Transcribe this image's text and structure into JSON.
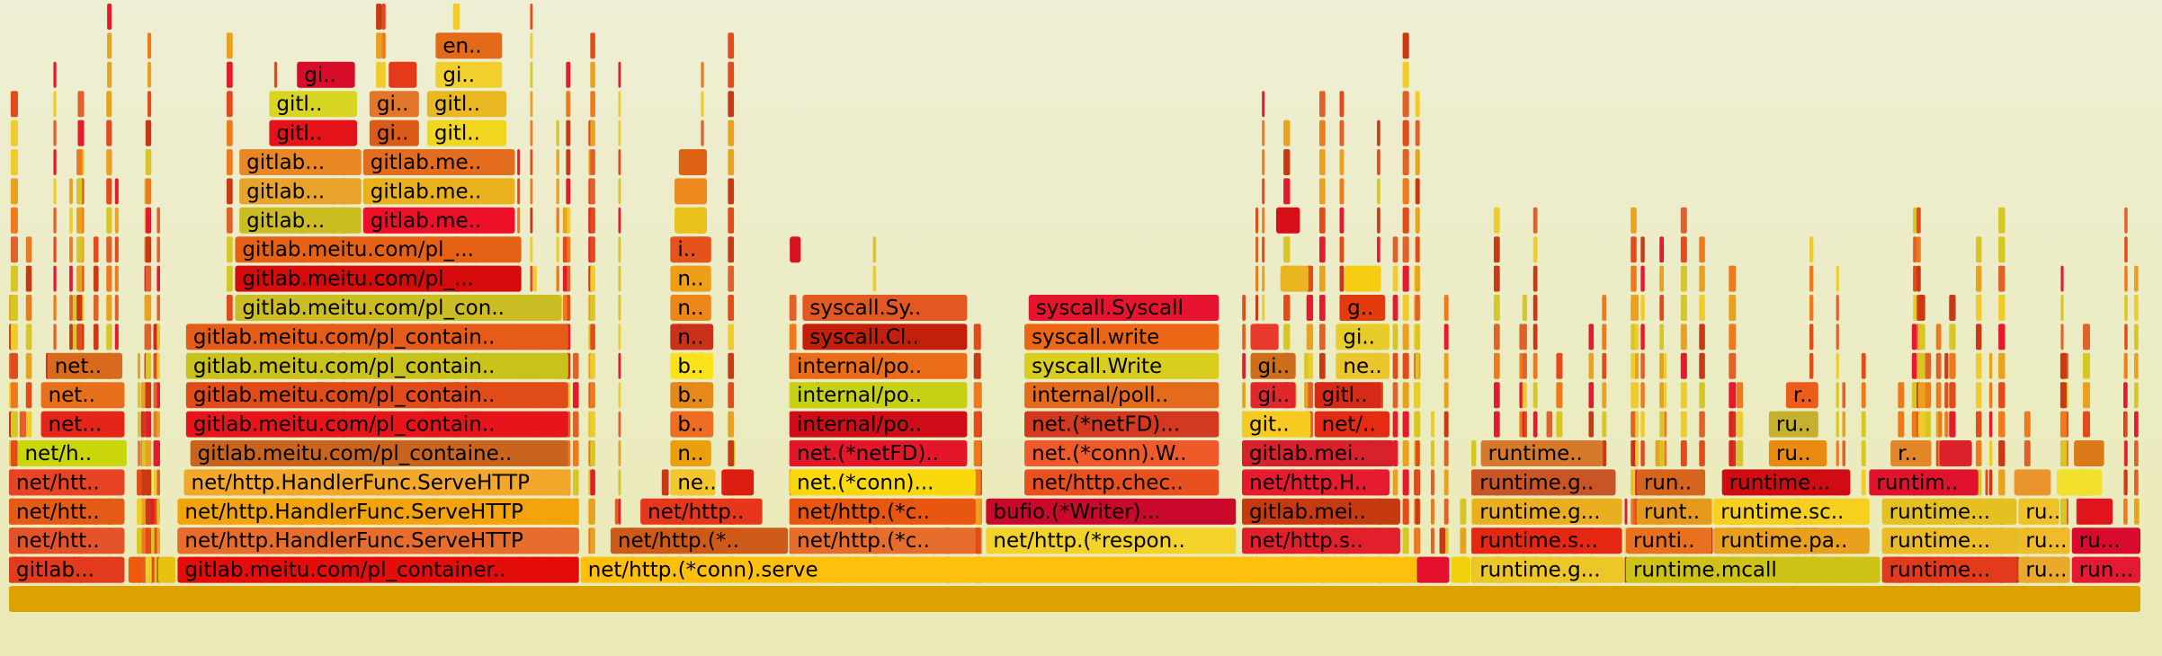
{
  "chart_data": {
    "type": "flamegraph",
    "title": "",
    "frames": [
      {
        "label": "",
        "depth": 0,
        "start": 0.0,
        "width": 1.0,
        "color": "#dca200"
      },
      {
        "label": "gitlab...",
        "depth": 1,
        "start": 0.0,
        "width": 0.055,
        "color": "#e13a1c"
      },
      {
        "label": "",
        "depth": 1,
        "start": 0.056,
        "width": 0.007,
        "color": "#f05a0c"
      },
      {
        "label": "",
        "depth": 1,
        "start": 0.07,
        "width": 0.009,
        "color": "#e7c310"
      },
      {
        "label": "gitlab.meitu.com/pl_container..",
        "depth": 1,
        "start": 0.079,
        "width": 0.189,
        "color": "#e50c0c"
      },
      {
        "label": "net/http.(*conn).serve",
        "depth": 1,
        "start": 0.268,
        "width": 0.392,
        "color": "#fec00d"
      },
      {
        "label": "",
        "depth": 1,
        "start": 0.66,
        "width": 0.016,
        "color": "#e4112e"
      },
      {
        "label": "",
        "depth": 1,
        "start": 0.676,
        "width": 0.01,
        "color": "#f4d00c"
      },
      {
        "label": "runtime.g...",
        "depth": 1,
        "start": 0.686,
        "width": 0.072,
        "color": "#edc628"
      },
      {
        "label": "runtime.mcall",
        "depth": 1,
        "start": 0.758,
        "width": 0.12,
        "color": "#cec216"
      },
      {
        "label": "runtime...",
        "depth": 1,
        "start": 0.878,
        "width": 0.064,
        "color": "#e13a1c"
      },
      {
        "label": "ru...",
        "depth": 1,
        "start": 0.942,
        "width": 0.025,
        "color": "#e9a92c"
      },
      {
        "label": "run...",
        "depth": 1,
        "start": 0.967,
        "width": 0.033,
        "color": "#e31a32"
      },
      {
        "label": "net/htt..",
        "depth": 2,
        "start": 0.0,
        "width": 0.055,
        "color": "#e4522a"
      },
      {
        "label": "gitlab.meitu.com/pl_container..",
        "depth": 2,
        "start": 0.079,
        "width": 0.189,
        "color": "#e50c0c"
      },
      {
        "label": "net/http.HandlerFunc.ServeHTTP",
        "depth": 2,
        "start": 0.079,
        "width": 0.189,
        "color": "#e66d2c"
      },
      {
        "label": "net/http.(*..",
        "depth": 2,
        "start": 0.282,
        "width": 0.084,
        "color": "#cd5a18"
      },
      {
        "label": "net/http.(*c..",
        "depth": 2,
        "start": 0.366,
        "width": 0.088,
        "color": "#e66d2c"
      },
      {
        "label": "net/http.(*respon..",
        "depth": 2,
        "start": 0.458,
        "width": 0.118,
        "color": "#f3d22a"
      },
      {
        "label": "net/http.s..",
        "depth": 2,
        "start": 0.578,
        "width": 0.075,
        "color": "#e2202c"
      },
      {
        "label": "runtime.s...",
        "depth": 2,
        "start": 0.686,
        "width": 0.071,
        "color": "#e52713"
      },
      {
        "label": "runti..",
        "depth": 2,
        "start": 0.758,
        "width": 0.041,
        "color": "#e8701f"
      },
      {
        "label": "runtime.pa..",
        "depth": 2,
        "start": 0.799,
        "width": 0.074,
        "color": "#e8a01d"
      },
      {
        "label": "runtime...",
        "depth": 2,
        "start": 0.878,
        "width": 0.064,
        "color": "#ebbb26"
      },
      {
        "label": "ru...",
        "depth": 2,
        "start": 0.942,
        "width": 0.025,
        "color": "#efbb29"
      },
      {
        "label": "ru...",
        "depth": 2,
        "start": 0.967,
        "width": 0.033,
        "color": "#d80a2e"
      },
      {
        "label": "net/htt..",
        "depth": 3,
        "start": 0.0,
        "width": 0.055,
        "color": "#e35b14"
      },
      {
        "label": "net/http.HandlerFunc.ServeHTTP",
        "depth": 3,
        "start": 0.079,
        "width": 0.189,
        "color": "#f3a40b"
      },
      {
        "label": "net/http..",
        "depth": 3,
        "start": 0.296,
        "width": 0.058,
        "color": "#e8361d"
      },
      {
        "label": "net/http.(*c..",
        "depth": 3,
        "start": 0.366,
        "width": 0.088,
        "color": "#e8560f"
      },
      {
        "label": "bufio.(*Writer)...",
        "depth": 3,
        "start": 0.458,
        "width": 0.118,
        "color": "#c9082c"
      },
      {
        "label": "gitlab.mei..",
        "depth": 3,
        "start": 0.578,
        "width": 0.075,
        "color": "#c63a12"
      },
      {
        "label": "runtime.g...",
        "depth": 3,
        "start": 0.686,
        "width": 0.071,
        "color": "#eaaf1e"
      },
      {
        "label": "runt..",
        "depth": 3,
        "start": 0.763,
        "width": 0.036,
        "color": "#e59a1c"
      },
      {
        "label": "runtime.sc..",
        "depth": 3,
        "start": 0.799,
        "width": 0.074,
        "color": "#f7cf1e"
      },
      {
        "label": "runtime...",
        "depth": 3,
        "start": 0.878,
        "width": 0.064,
        "color": "#e4c020"
      },
      {
        "label": "ru..",
        "depth": 3,
        "start": 0.942,
        "width": 0.02,
        "color": "#efc228"
      },
      {
        "label": "",
        "depth": 3,
        "start": 0.97,
        "width": 0.017,
        "color": "#e1141c"
      },
      {
        "label": "net/htt..",
        "depth": 4,
        "start": 0.0,
        "width": 0.055,
        "color": "#e94326"
      },
      {
        "label": "net/http.HandlerFunc.ServeHTTP",
        "depth": 4,
        "start": 0.082,
        "width": 0.182,
        "color": "#f3a72b"
      },
      {
        "label": "ne..",
        "depth": 4,
        "start": 0.31,
        "width": 0.022,
        "color": "#f2c72c"
      },
      {
        "label": "",
        "depth": 4,
        "start": 0.334,
        "width": 0.016,
        "color": "#db1e10"
      },
      {
        "label": "net.(*conn)...",
        "depth": 4,
        "start": 0.366,
        "width": 0.088,
        "color": "#fbd80c"
      },
      {
        "label": "net/http.chec..",
        "depth": 4,
        "start": 0.476,
        "width": 0.092,
        "color": "#e9501f"
      },
      {
        "label": "net/http.H..",
        "depth": 4,
        "start": 0.578,
        "width": 0.07,
        "color": "#e61b2f"
      },
      {
        "label": "runtime.g..",
        "depth": 4,
        "start": 0.686,
        "width": 0.068,
        "color": "#c85526"
      },
      {
        "label": "run..",
        "depth": 4,
        "start": 0.763,
        "width": 0.033,
        "color": "#d6641c"
      },
      {
        "label": "runtime...",
        "depth": 4,
        "start": 0.803,
        "width": 0.061,
        "color": "#d00c12"
      },
      {
        "label": "runtim..",
        "depth": 4,
        "start": 0.872,
        "width": 0.052,
        "color": "#e1122c"
      },
      {
        "label": "",
        "depth": 4,
        "start": 0.94,
        "width": 0.018,
        "color": "#e9952b"
      },
      {
        "label": "",
        "depth": 4,
        "start": 0.96,
        "width": 0.022,
        "color": "#f1e02c"
      },
      {
        "label": "net/h..",
        "depth": 5,
        "start": 0.004,
        "width": 0.052,
        "color": "#cbd60a"
      },
      {
        "label": "gitlab.meitu.com/pl_containe..",
        "depth": 5,
        "start": 0.085,
        "width": 0.178,
        "color": "#c9641e"
      },
      {
        "label": "n..",
        "depth": 5,
        "start": 0.31,
        "width": 0.02,
        "color": "#eaa00d"
      },
      {
        "label": "net.(*netFD)..",
        "depth": 5,
        "start": 0.366,
        "width": 0.084,
        "color": "#e3162a"
      },
      {
        "label": "net.(*conn).W..",
        "depth": 5,
        "start": 0.476,
        "width": 0.092,
        "color": "#ef5a2a"
      },
      {
        "label": "gitlab.mei..",
        "depth": 5,
        "start": 0.578,
        "width": 0.072,
        "color": "#d8212c"
      },
      {
        "label": "runtime..",
        "depth": 5,
        "start": 0.69,
        "width": 0.058,
        "color": "#d7792b"
      },
      {
        "label": "ru..",
        "depth": 5,
        "start": 0.825,
        "width": 0.028,
        "color": "#e88a10"
      },
      {
        "label": "r..",
        "depth": 5,
        "start": 0.882,
        "width": 0.02,
        "color": "#e1872a"
      },
      {
        "label": "",
        "depth": 5,
        "start": 0.905,
        "width": 0.016,
        "color": "#dd212c"
      },
      {
        "label": "",
        "depth": 5,
        "start": 0.968,
        "width": 0.015,
        "color": "#da7a18"
      },
      {
        "label": "net...",
        "depth": 6,
        "start": 0.015,
        "width": 0.04,
        "color": "#e52517"
      },
      {
        "label": "gitlab.meitu.com/pl_contain..",
        "depth": 6,
        "start": 0.083,
        "width": 0.18,
        "color": "#e8141c"
      },
      {
        "label": "b..",
        "depth": 6,
        "start": 0.31,
        "width": 0.021,
        "color": "#ef6d23"
      },
      {
        "label": "internal/po..",
        "depth": 6,
        "start": 0.366,
        "width": 0.084,
        "color": "#cf0c18"
      },
      {
        "label": "net.(*netFD)...",
        "depth": 6,
        "start": 0.476,
        "width": 0.092,
        "color": "#d3391e"
      },
      {
        "label": "git..",
        "depth": 6,
        "start": 0.578,
        "width": 0.033,
        "color": "#f7ca22"
      },
      {
        "label": "net/..",
        "depth": 6,
        "start": 0.612,
        "width": 0.036,
        "color": "#e62b14"
      },
      {
        "label": "ru..",
        "depth": 6,
        "start": 0.825,
        "width": 0.024,
        "color": "#c6b12e"
      },
      {
        "label": "net..",
        "depth": 7,
        "start": 0.015,
        "width": 0.04,
        "color": "#e8701c"
      },
      {
        "label": "gitlab.meitu.com/pl_contain..",
        "depth": 7,
        "start": 0.083,
        "width": 0.18,
        "color": "#e14b1a"
      },
      {
        "label": "b..",
        "depth": 7,
        "start": 0.31,
        "width": 0.021,
        "color": "#e58a1a"
      },
      {
        "label": "internal/po..",
        "depth": 7,
        "start": 0.366,
        "width": 0.084,
        "color": "#c7d114"
      },
      {
        "label": "internal/poll..",
        "depth": 7,
        "start": 0.476,
        "width": 0.092,
        "color": "#e56b1c"
      },
      {
        "label": "gi..",
        "depth": 7,
        "start": 0.582,
        "width": 0.022,
        "color": "#e2272c"
      },
      {
        "label": "gitl..",
        "depth": 7,
        "start": 0.612,
        "width": 0.032,
        "color": "#d72a16"
      },
      {
        "label": "r..",
        "depth": 7,
        "start": 0.833,
        "width": 0.016,
        "color": "#ee5c1a"
      },
      {
        "label": "net..",
        "depth": 8,
        "start": 0.018,
        "width": 0.036,
        "color": "#d76a1c"
      },
      {
        "label": "gitlab.meitu.com/pl_contain..",
        "depth": 8,
        "start": 0.083,
        "width": 0.18,
        "color": "#c8c21a"
      },
      {
        "label": "b..",
        "depth": 8,
        "start": 0.31,
        "width": 0.021,
        "color": "#fbe21a"
      },
      {
        "label": "internal/po..",
        "depth": 8,
        "start": 0.366,
        "width": 0.084,
        "color": "#eb6c18"
      },
      {
        "label": "syscall.Write",
        "depth": 8,
        "start": 0.476,
        "width": 0.092,
        "color": "#d9ce1e"
      },
      {
        "label": "gi..",
        "depth": 8,
        "start": 0.582,
        "width": 0.022,
        "color": "#cd6e1a"
      },
      {
        "label": "ne..",
        "depth": 8,
        "start": 0.622,
        "width": 0.026,
        "color": "#eac52c"
      },
      {
        "label": "gitlab.meitu.com/pl_contain..",
        "depth": 9,
        "start": 0.083,
        "width": 0.18,
        "color": "#e55c18"
      },
      {
        "label": "n..",
        "depth": 9,
        "start": 0.31,
        "width": 0.021,
        "color": "#c9311a"
      },
      {
        "label": "syscall.Cl..",
        "depth": 9,
        "start": 0.372,
        "width": 0.078,
        "color": "#c21f0c"
      },
      {
        "label": "syscall.write",
        "depth": 9,
        "start": 0.476,
        "width": 0.092,
        "color": "#ec6616"
      },
      {
        "label": "",
        "depth": 9,
        "start": 0.582,
        "width": 0.014,
        "color": "#e9392c"
      },
      {
        "label": "gi..",
        "depth": 9,
        "start": 0.622,
        "width": 0.026,
        "color": "#e8cc2a"
      },
      {
        "label": "gitlab.meitu.com/pl_con..",
        "depth": 10,
        "start": 0.106,
        "width": 0.154,
        "color": "#cbbe24"
      },
      {
        "label": "n..",
        "depth": 10,
        "start": 0.31,
        "width": 0.02,
        "color": "#ec8618"
      },
      {
        "label": "syscall.Sy..",
        "depth": 10,
        "start": 0.372,
        "width": 0.078,
        "color": "#e25822"
      },
      {
        "label": "syscall.Syscall",
        "depth": 10,
        "start": 0.478,
        "width": 0.09,
        "color": "#e71430"
      },
      {
        "label": "g..",
        "depth": 10,
        "start": 0.624,
        "width": 0.022,
        "color": "#e33a0e"
      },
      {
        "label": "gitlab.meitu.com/pl_...",
        "depth": 11,
        "start": 0.106,
        "width": 0.135,
        "color": "#d60b0b"
      },
      {
        "label": "n..",
        "depth": 11,
        "start": 0.31,
        "width": 0.02,
        "color": "#ef9e1a"
      },
      {
        "label": "",
        "depth": 11,
        "start": 0.596,
        "width": 0.014,
        "color": "#e9b622"
      },
      {
        "label": "",
        "depth": 11,
        "start": 0.626,
        "width": 0.018,
        "color": "#f6cc12"
      },
      {
        "label": "gitlab.meitu.com/pl_...",
        "depth": 12,
        "start": 0.106,
        "width": 0.135,
        "color": "#e56116"
      },
      {
        "label": "i..",
        "depth": 12,
        "start": 0.31,
        "width": 0.02,
        "color": "#e5521c"
      },
      {
        "label": "",
        "depth": 12,
        "start": 0.366,
        "width": 0.006,
        "color": "#d81220"
      },
      {
        "label": "gitlab...",
        "depth": 13,
        "start": 0.108,
        "width": 0.058,
        "color": "#ccbd22"
      },
      {
        "label": "gitlab.me..",
        "depth": 13,
        "start": 0.166,
        "width": 0.072,
        "color": "#ed1028"
      },
      {
        "label": "",
        "depth": 13,
        "start": 0.312,
        "width": 0.016,
        "color": "#e9c21a"
      },
      {
        "label": "",
        "depth": 13,
        "start": 0.594,
        "width": 0.012,
        "color": "#d70f18"
      },
      {
        "label": "gitlab...",
        "depth": 14,
        "start": 0.108,
        "width": 0.058,
        "color": "#e8a42a"
      },
      {
        "label": "gitlab.me..",
        "depth": 14,
        "start": 0.166,
        "width": 0.072,
        "color": "#e9b21c"
      },
      {
        "label": "",
        "depth": 14,
        "start": 0.312,
        "width": 0.016,
        "color": "#ee8a1e"
      },
      {
        "label": "gitlab...",
        "depth": 15,
        "start": 0.108,
        "width": 0.058,
        "color": "#e88724"
      },
      {
        "label": "gitlab.me..",
        "depth": 15,
        "start": 0.166,
        "width": 0.072,
        "color": "#e46c1e"
      },
      {
        "label": "",
        "depth": 15,
        "start": 0.314,
        "width": 0.014,
        "color": "#de6214"
      },
      {
        "label": "gitl..",
        "depth": 16,
        "start": 0.122,
        "width": 0.042,
        "color": "#e5121a"
      },
      {
        "label": "gi..",
        "depth": 16,
        "start": 0.169,
        "width": 0.024,
        "color": "#dc5a18"
      },
      {
        "label": "gitl..",
        "depth": 16,
        "start": 0.196,
        "width": 0.038,
        "color": "#f1d620"
      },
      {
        "label": "gitl..",
        "depth": 17,
        "start": 0.122,
        "width": 0.042,
        "color": "#d8d622"
      },
      {
        "label": "gi..",
        "depth": 17,
        "start": 0.169,
        "width": 0.024,
        "color": "#e4762a"
      },
      {
        "label": "gitl..",
        "depth": 17,
        "start": 0.196,
        "width": 0.038,
        "color": "#eab820"
      },
      {
        "label": "gi..",
        "depth": 18,
        "start": 0.135,
        "width": 0.028,
        "color": "#d90d2a"
      },
      {
        "label": "",
        "depth": 18,
        "start": 0.178,
        "width": 0.014,
        "color": "#e43a1a"
      },
      {
        "label": "gi..",
        "depth": 18,
        "start": 0.2,
        "width": 0.032,
        "color": "#f1cf2c"
      },
      {
        "label": "en..",
        "depth": 19,
        "start": 0.2,
        "width": 0.032,
        "color": "#e36a18"
      }
    ]
  },
  "slivers": {
    "color_palette": [
      "#e34b1a",
      "#e8a21e",
      "#d7c624",
      "#e51a2c",
      "#ef7a1c",
      "#f0cc2a",
      "#c93a14",
      "#e0622a"
    ]
  }
}
